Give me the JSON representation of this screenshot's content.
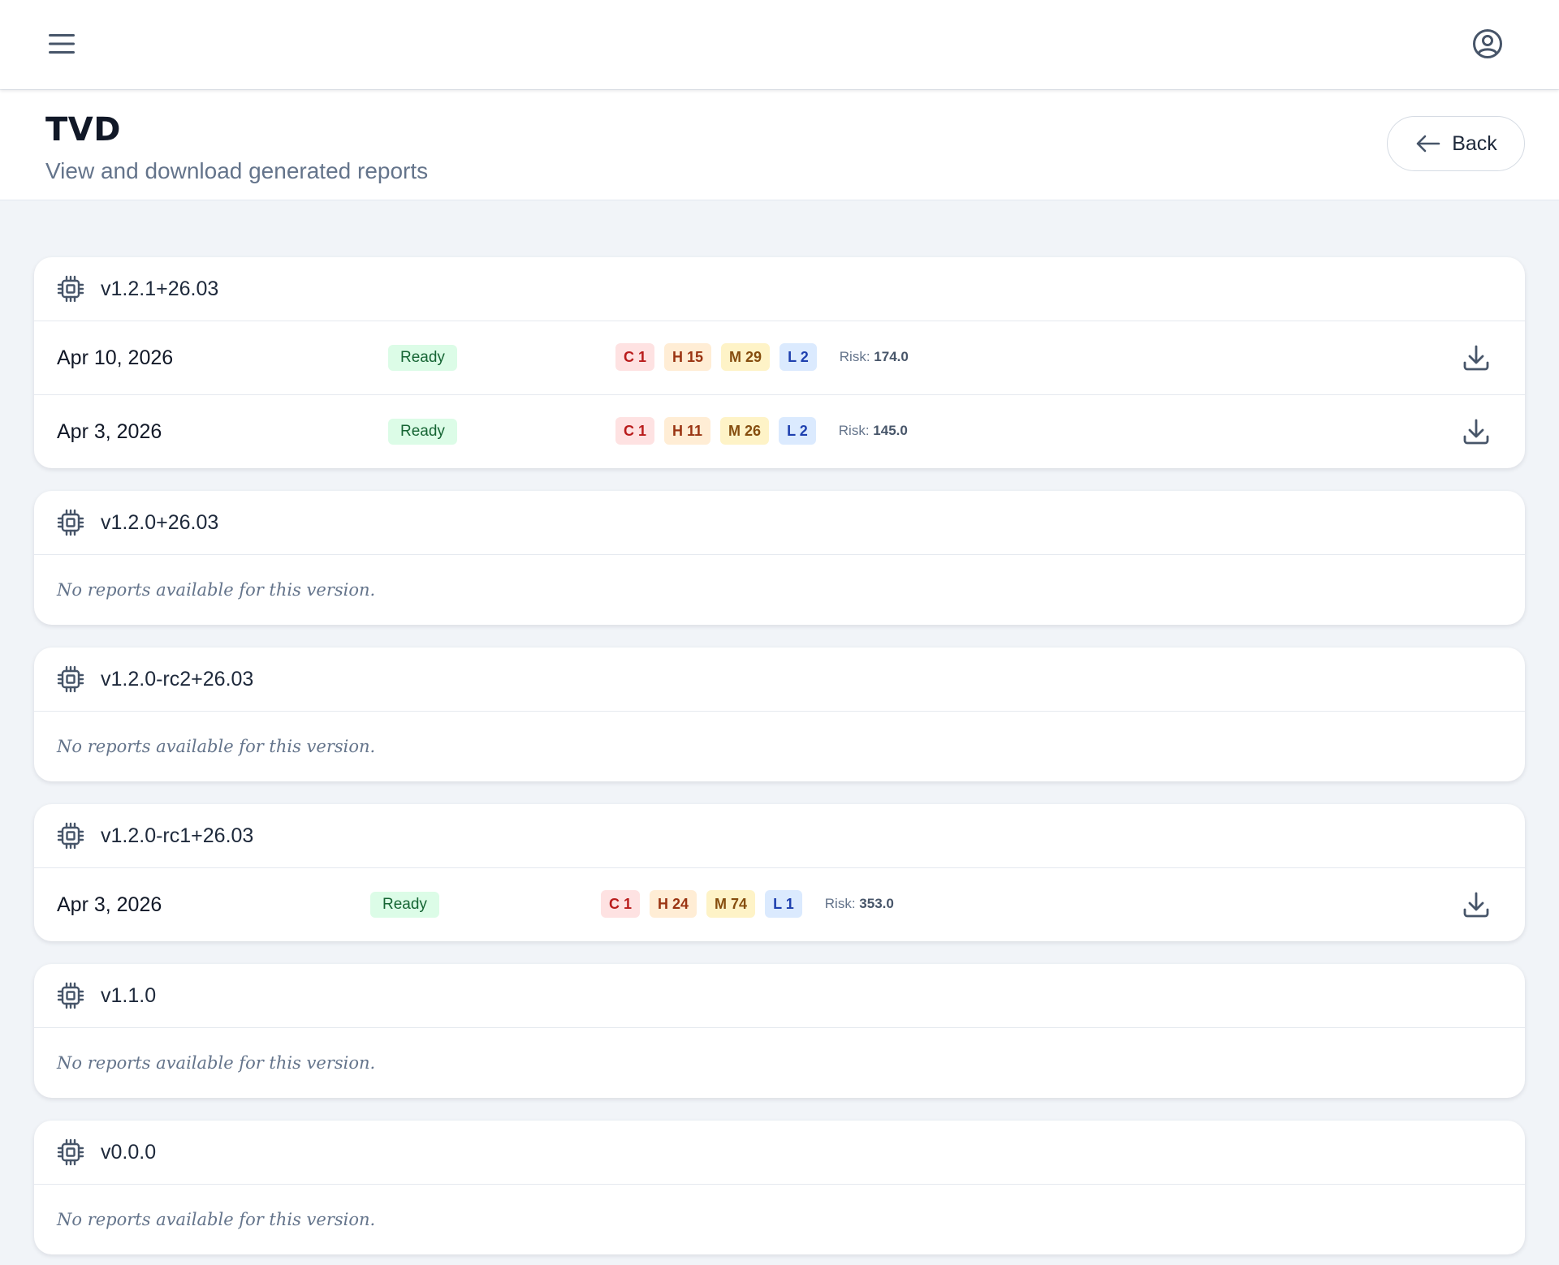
{
  "header": {
    "title": "TVD",
    "subtitle": "View and download generated reports",
    "back_label": "Back"
  },
  "icons": {
    "menu": "menu-icon",
    "account": "account-circle-icon",
    "back": "arrow-left-icon",
    "version": "chip-icon",
    "download": "download-icon"
  },
  "colors": {
    "ready_bg": "#dcfce7",
    "critical": "#fee2e2",
    "high": "#ffedd5",
    "medium": "#fef3c7",
    "low": "#dbeafe"
  },
  "empty_message": "No reports available for this version.",
  "versions": [
    {
      "name": "v1.2.1+26.03",
      "reports": [
        {
          "date": "Apr 10, 2026",
          "status": "Ready",
          "critical": "C 1",
          "high": "H 15",
          "medium": "M 29",
          "low": "L 2",
          "risk_label": "Risk:",
          "risk_value": "174.0"
        },
        {
          "date": "Apr 3, 2026",
          "status": "Ready",
          "critical": "C 1",
          "high": "H 11",
          "medium": "M 26",
          "low": "L 2",
          "risk_label": "Risk:",
          "risk_value": "145.0"
        }
      ]
    },
    {
      "name": "v1.2.0+26.03",
      "reports": []
    },
    {
      "name": "v1.2.0-rc2+26.03",
      "reports": []
    },
    {
      "name": "v1.2.0-rc1+26.03",
      "reports": [
        {
          "date": "Apr 3, 2026",
          "status": "Ready",
          "critical": "C 1",
          "high": "H 24",
          "medium": "M 74",
          "low": "L 1",
          "risk_label": "Risk:",
          "risk_value": "353.0"
        }
      ]
    },
    {
      "name": "v1.1.0",
      "reports": []
    },
    {
      "name": "v0.0.0",
      "reports": []
    }
  ]
}
